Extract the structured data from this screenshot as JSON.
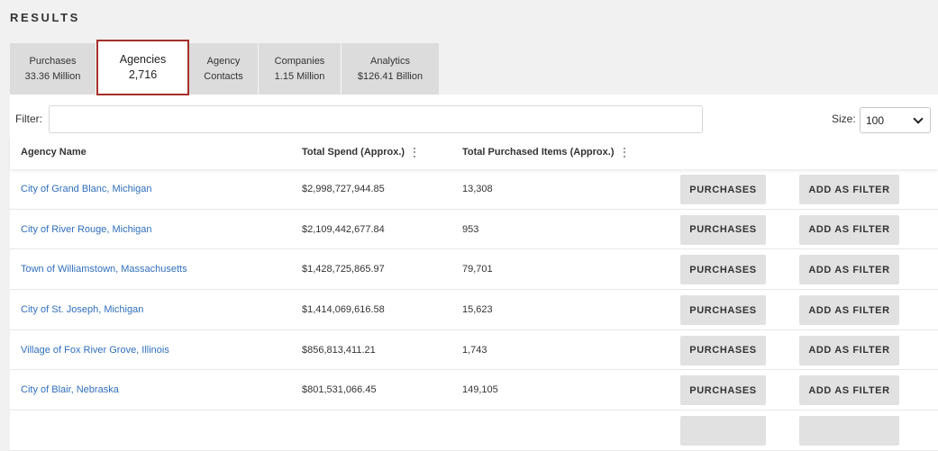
{
  "section_title": "RESULTS",
  "tabs": [
    {
      "label": "Purchases",
      "sub": "33.36 Million",
      "active": false
    },
    {
      "label": "Agencies",
      "sub": "2,716",
      "active": true
    },
    {
      "label": "Agency",
      "sub": "Contacts",
      "active": false
    },
    {
      "label": "Companies",
      "sub": "1.15 Million",
      "active": false
    },
    {
      "label": "Analytics",
      "sub": "$126.41 Billion",
      "active": false
    }
  ],
  "filter": {
    "label": "Filter:",
    "value": "",
    "placeholder": ""
  },
  "size": {
    "label": "Size:",
    "selected": "100"
  },
  "columns": {
    "name": "Agency Name",
    "spend": "Total Spend (Approx.)",
    "items": "Total Purchased Items (Approx.)"
  },
  "row_buttons": {
    "purchases": "PURCHASES",
    "add_filter": "ADD AS FILTER"
  },
  "rows": [
    {
      "name": "City of Grand Blanc, Michigan",
      "spend": "$2,998,727,944.85",
      "items": "13,308"
    },
    {
      "name": "City of River Rouge, Michigan",
      "spend": "$2,109,442,677.84",
      "items": "953"
    },
    {
      "name": "Town of Williamstown, Massachusetts",
      "spend": "$1,428,725,865.97",
      "items": "79,701"
    },
    {
      "name": "City of St. Joseph, Michigan",
      "spend": "$1,414,069,616.58",
      "items": "15,623"
    },
    {
      "name": "Village of Fox River Grove, Illinois",
      "spend": "$856,813,411.21",
      "items": "1,743"
    },
    {
      "name": "City of Blair, Nebraska",
      "spend": "$801,531,066.45",
      "items": "149,105"
    }
  ],
  "colors": {
    "accent_border": "#a5302a",
    "link": "#2f6fbe",
    "button_bg": "#e1e1e1"
  }
}
